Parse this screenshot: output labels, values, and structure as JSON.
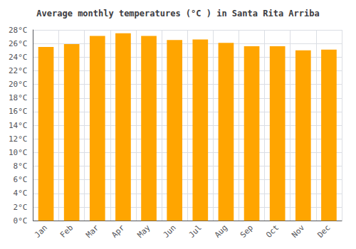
{
  "chart_data": {
    "type": "bar",
    "title": "Average monthly temperatures (°C ) in Santa Rita Arriba",
    "categories": [
      "Jan",
      "Feb",
      "Mar",
      "Apr",
      "May",
      "Jun",
      "Jul",
      "Aug",
      "Sep",
      "Oct",
      "Nov",
      "Dec"
    ],
    "values": [
      25.5,
      25.9,
      27.1,
      27.5,
      27.1,
      26.5,
      26.6,
      26.1,
      25.6,
      25.6,
      25.0,
      25.1
    ],
    "color": "#FFA500",
    "ylim": [
      0,
      28
    ],
    "yticks": [
      {
        "value": 0,
        "label": "0°C"
      },
      {
        "value": 2,
        "label": "2°C"
      },
      {
        "value": 4,
        "label": "4°C"
      },
      {
        "value": 6,
        "label": "6°C"
      },
      {
        "value": 8,
        "label": "8°C"
      },
      {
        "value": 10,
        "label": "10°C"
      },
      {
        "value": 12,
        "label": "12°C"
      },
      {
        "value": 14,
        "label": "14°C"
      },
      {
        "value": 16,
        "label": "16°C"
      },
      {
        "value": 18,
        "label": "18°C"
      },
      {
        "value": 20,
        "label": "20°C"
      },
      {
        "value": 22,
        "label": "22°C"
      },
      {
        "value": 24,
        "label": "24°C"
      },
      {
        "value": 26,
        "label": "26°C"
      },
      {
        "value": 28,
        "label": "28°C"
      }
    ],
    "grid": true
  }
}
